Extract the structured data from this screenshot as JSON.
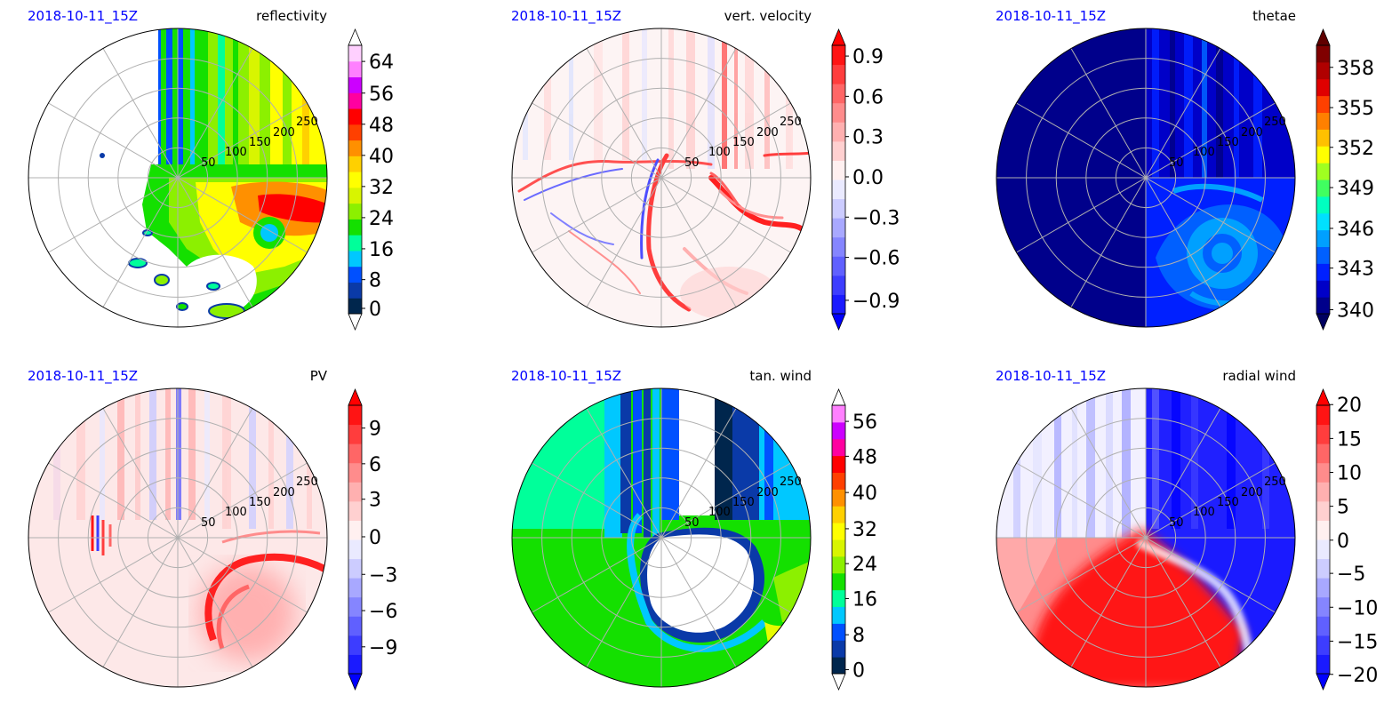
{
  "chart_data": [
    {
      "type": "heatmap",
      "date": "2018-10-11_15Z",
      "title": "reflectivity",
      "r_ticks": [
        "50",
        "100",
        "150",
        "200",
        "250"
      ],
      "colorbar_ticks": [
        "0",
        "8",
        "16",
        "24",
        "32",
        "40",
        "48",
        "56",
        "64"
      ],
      "colorbar_colors": [
        "#00264d",
        "#0a3aa8",
        "#0050ff",
        "#00c8ff",
        "#00ff9a",
        "#14e000",
        "#8cf000",
        "#d8f500",
        "#ffff00",
        "#ffd000",
        "#ff9000",
        "#ff4000",
        "#ff0000",
        "#ff00a0",
        "#cc00ff",
        "#ff80ff",
        "#ffd0ff"
      ],
      "extend": "both",
      "ext_low": "#ffffff",
      "ext_high": "#ffffff"
    },
    {
      "type": "heatmap",
      "date": "2018-10-11_15Z",
      "title": "vert. velocity",
      "r_ticks": [
        "50",
        "100",
        "150",
        "200",
        "250"
      ],
      "colorbar_ticks": [
        "0.9",
        "0.6",
        "0.3",
        "0.0",
        "−0.3",
        "−0.6",
        "−0.9"
      ],
      "colorbar_colors": [
        "#1a1aff",
        "#3d3dff",
        "#6060ff",
        "#8585ff",
        "#a8a8ff",
        "#ccccff",
        "#eaeaff",
        "#fff0f0",
        "#ffd0d0",
        "#ffb0b0",
        "#ff8c8c",
        "#ff6666",
        "#ff3d3d",
        "#ff1414"
      ],
      "extend": "both",
      "ext_low": "#0000ff",
      "ext_high": "#ff0000"
    },
    {
      "type": "heatmap",
      "date": "2018-10-11_15Z",
      "title": "thetae",
      "r_ticks": [
        "50",
        "100",
        "150",
        "200",
        "250"
      ],
      "colorbar_ticks": [
        "340",
        "343",
        "346",
        "349",
        "352",
        "355",
        "358"
      ],
      "colorbar_colors": [
        "#00008b",
        "#0000c8",
        "#0020ff",
        "#0060ff",
        "#00a0ff",
        "#00e0ff",
        "#00ffc0",
        "#40ff60",
        "#a0ff20",
        "#ffff00",
        "#ffc000",
        "#ff8000",
        "#ff4000",
        "#e00000",
        "#b00000",
        "#800000"
      ],
      "extend": "both",
      "ext_low": "#000060",
      "ext_high": "#600000"
    },
    {
      "type": "heatmap",
      "date": "2018-10-11_15Z",
      "title": "PV",
      "r_ticks": [
        "50",
        "100",
        "150",
        "200",
        "250"
      ],
      "colorbar_ticks": [
        "9",
        "6",
        "3",
        "0",
        "−3",
        "−6",
        "−9"
      ],
      "colorbar_colors": [
        "#1a1aff",
        "#3d3dff",
        "#6060ff",
        "#8585ff",
        "#a8a8ff",
        "#ccccff",
        "#eaeaff",
        "#fff0f0",
        "#ffd0d0",
        "#ffb0b0",
        "#ff8c8c",
        "#ff6666",
        "#ff3d3d",
        "#ff1414"
      ],
      "extend": "both",
      "ext_low": "#0000ff",
      "ext_high": "#ff0000"
    },
    {
      "type": "heatmap",
      "date": "2018-10-11_15Z",
      "title": "tan. wind",
      "r_ticks": [
        "50",
        "100",
        "150",
        "200",
        "250"
      ],
      "colorbar_ticks": [
        "0",
        "8",
        "16",
        "24",
        "32",
        "40",
        "48",
        "56"
      ],
      "colorbar_colors": [
        "#00264d",
        "#0a3aa8",
        "#0050ff",
        "#00c8ff",
        "#00ff9a",
        "#14e000",
        "#8cf000",
        "#d8f500",
        "#ffff00",
        "#ffd000",
        "#ff9000",
        "#ff4000",
        "#ff0000",
        "#ff00a0",
        "#cc00ff",
        "#ff80ff"
      ],
      "extend": "both",
      "ext_low": "#ffffff",
      "ext_high": "#ffffff"
    },
    {
      "type": "heatmap",
      "date": "2018-10-11_15Z",
      "title": "radial wind",
      "r_ticks": [
        "50",
        "100",
        "150",
        "200",
        "250"
      ],
      "colorbar_ticks": [
        "20",
        "15",
        "10",
        "5",
        "0",
        "−5",
        "−10",
        "−15",
        "−20"
      ],
      "colorbar_colors": [
        "#1a1aff",
        "#3d3dff",
        "#6060ff",
        "#8585ff",
        "#a8a8ff",
        "#ccccff",
        "#eaeaff",
        "#fff0f0",
        "#ffd0d0",
        "#ffb0b0",
        "#ff8c8c",
        "#ff6666",
        "#ff3d3d",
        "#ff1414"
      ],
      "extend": "both",
      "ext_low": "#0000ff",
      "ext_high": "#ff0000"
    }
  ]
}
